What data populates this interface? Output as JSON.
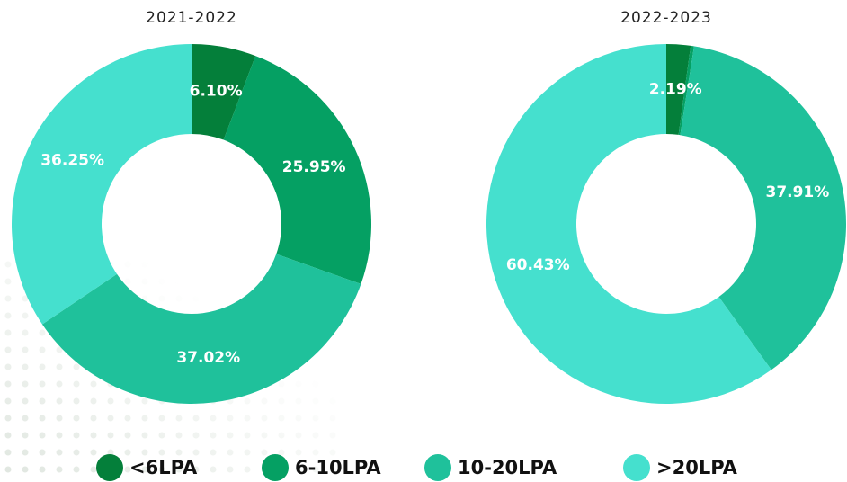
{
  "chart_data": [
    {
      "type": "pie",
      "title": "2021-2022",
      "values": [
        6.1,
        25.95,
        37.02,
        36.25
      ],
      "value_labels": [
        "6.10%",
        "25.95%",
        "37.02%",
        "36.25%"
      ]
    },
    {
      "type": "pie",
      "title": "2022-2023",
      "values": [
        2.19,
        0.3,
        37.91,
        60.43
      ],
      "value_labels": [
        "2.19%",
        null,
        "37.91%",
        "60.43%"
      ]
    }
  ],
  "legend": {
    "categories": [
      "<6LPA",
      "6-10LPA",
      "10-20LPA",
      ">20LPA"
    ],
    "colors": [
      "#047f3a",
      "#05a063",
      "#1fc19b",
      "#45e0ce"
    ]
  }
}
